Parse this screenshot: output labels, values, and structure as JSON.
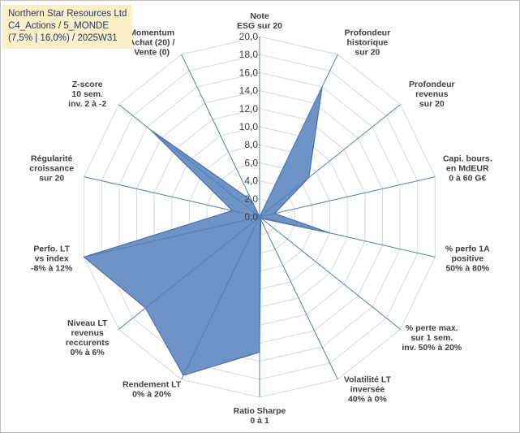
{
  "title": {
    "line1": "Northern Star Resources Ltd",
    "line2": "C4_Actions / 5_MONDE",
    "line3": "(7,5% | 16,0%) / 2025W31"
  },
  "colors": {
    "fill": "#6f93c4",
    "stroke": "#4a6fa5",
    "grid": "#d9d9d9",
    "spoke": "#4f81bd",
    "title_bg": "#fdefc7"
  },
  "chart_data": {
    "type": "radar",
    "rmin": 0,
    "rmax": 20,
    "tick_labels": [
      "0,0",
      "2,0",
      "4,0",
      "6,0",
      "8,0",
      "10,0",
      "12,0",
      "14,0",
      "16,0",
      "18,0",
      "20,0"
    ],
    "categories": [
      [
        "Note",
        "ESG sur 20"
      ],
      [
        "Profondeur",
        "historique",
        "sur 20"
      ],
      [
        "Profondeur",
        "revenus",
        "sur 20"
      ],
      [
        "Capi. bours.",
        "en MdEUR",
        "0 à 60 G€"
      ],
      [
        "% perfo 1A",
        "positive",
        "50% à 80%"
      ],
      [
        "% perte max.",
        "sur 1 sem.",
        "inv. 50% à 20%"
      ],
      [
        "Volatilité LT",
        "inversée",
        "40% à 0%"
      ],
      [
        "Ratio Sharpe",
        "0 à 1"
      ],
      [
        "Rendement LT",
        "0% à 20%"
      ],
      [
        "Niveau LT",
        "revenus",
        "reccurents",
        "0% à 6%"
      ],
      [
        "Perfo. LT",
        "vs index",
        "-8% à 12%"
      ],
      [
        "Régularité",
        "croissance",
        "sur 20"
      ],
      [
        "Z-score",
        "10 sem.",
        "inv. 2 à -2"
      ],
      [
        "Momentum",
        "Achat (20) /",
        "Vente (0)"
      ]
    ],
    "values": [
      0,
      16,
      7,
      1.7,
      8,
      0.3,
      0.3,
      15,
      19.5,
      16.2,
      20,
      3.1,
      15.5,
      2
    ]
  }
}
